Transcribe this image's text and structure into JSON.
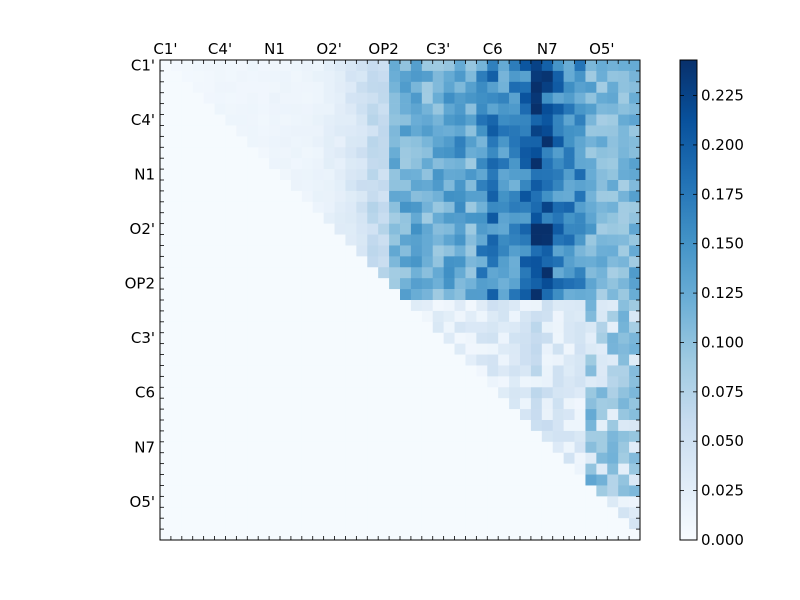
{
  "chart_data": {
    "type": "heatmap",
    "title": "",
    "xlabel": "",
    "ylabel": "",
    "grid": false,
    "x_tick_labels": [
      "C1'",
      "C4'",
      "N1",
      "O2'",
      "OP2",
      "C3'",
      "C6",
      "N7",
      "O5'"
    ],
    "y_tick_labels": [
      "C1'",
      "C4'",
      "N1",
      "O2'",
      "OP2",
      "C3'",
      "C6",
      "N7",
      "O5'"
    ],
    "matrix_size": 44,
    "tick_every": 5,
    "colorbar": {
      "label": "",
      "min": 0.0,
      "max": 0.243,
      "tick_values": [
        0.0,
        0.025,
        0.05,
        0.075,
        0.1,
        0.125,
        0.15,
        0.175,
        0.2,
        0.225
      ],
      "tick_labels": [
        "0.000",
        "0.025",
        "0.050",
        "0.075",
        "0.100",
        "0.125",
        "0.150",
        "0.175",
        "0.200",
        "0.225"
      ],
      "colormap": "Blues",
      "colors": [
        "#f7fbff",
        "#deebf7",
        "#c6dbef",
        "#9ecae1",
        "#6baed6",
        "#4292c6",
        "#2171b5",
        "#08519c",
        "#08306b"
      ]
    },
    "column_mean_values": [
      0.005,
      0.005,
      0.005,
      0.008,
      0.008,
      0.01,
      0.01,
      0.01,
      0.01,
      0.01,
      0.012,
      0.012,
      0.012,
      0.012,
      0.015,
      0.02,
      0.025,
      0.035,
      0.045,
      0.06,
      0.06,
      0.11,
      0.12,
      0.125,
      0.115,
      0.12,
      0.125,
      0.135,
      0.12,
      0.15,
      0.165,
      0.145,
      0.15,
      0.175,
      0.225,
      0.2,
      0.165,
      0.155,
      0.15,
      0.12,
      0.11,
      0.105,
      0.11,
      0.115
    ]
  }
}
